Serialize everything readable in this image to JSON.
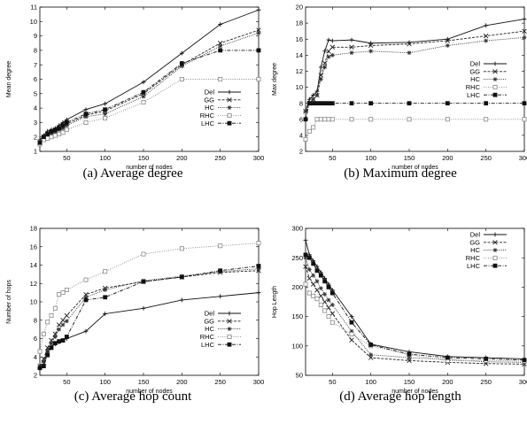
{
  "chart_data": [
    {
      "type": "line",
      "caption": "(a)  Average degree",
      "xlabel": "number of nodes",
      "ylabel": "Mean degree",
      "xlim": [
        15,
        300
      ],
      "ylim": [
        1,
        11
      ],
      "xticks": [
        50,
        100,
        150,
        200,
        250,
        300
      ],
      "yticks": [
        1,
        2,
        3,
        4,
        5,
        6,
        7,
        8,
        9,
        10,
        11
      ],
      "legend_position": "bottom-right",
      "x": [
        15,
        20,
        25,
        30,
        35,
        40,
        45,
        50,
        75,
        100,
        150,
        200,
        250,
        300
      ],
      "series": [
        {
          "name": "Del",
          "values": [
            1.8,
            2.1,
            2.4,
            2.5,
            2.6,
            2.8,
            3.0,
            3.2,
            3.9,
            4.3,
            5.8,
            7.8,
            9.8,
            10.8
          ]
        },
        {
          "name": "GG",
          "values": [
            1.6,
            2.0,
            2.2,
            2.3,
            2.4,
            2.6,
            2.7,
            2.9,
            3.5,
            3.8,
            5.0,
            7.0,
            8.5,
            9.4
          ]
        },
        {
          "name": "HC",
          "values": [
            1.6,
            1.9,
            2.1,
            2.2,
            2.3,
            2.5,
            2.6,
            2.8,
            3.4,
            3.6,
            4.8,
            6.9,
            8.3,
            9.2
          ]
        },
        {
          "name": "RHC",
          "values": [
            1.5,
            1.8,
            1.9,
            2.0,
            2.1,
            2.2,
            2.3,
            2.5,
            3.0,
            3.3,
            4.4,
            6.0,
            6.0,
            6.0
          ]
        },
        {
          "name": "LHC",
          "values": [
            1.6,
            2.0,
            2.2,
            2.4,
            2.5,
            2.6,
            2.8,
            3.0,
            3.6,
            3.9,
            5.1,
            7.1,
            8.0,
            8.0
          ]
        }
      ]
    },
    {
      "type": "line",
      "caption": "(b)  Maximum degree",
      "xlabel": "number of nodes",
      "ylabel": "Max degree",
      "xlim": [
        15,
        300
      ],
      "ylim": [
        2,
        20
      ],
      "xticks": [
        50,
        100,
        150,
        200,
        250,
        300
      ],
      "yticks": [
        2,
        4,
        6,
        8,
        10,
        12,
        14,
        16,
        18,
        20
      ],
      "legend_position": "middle-right",
      "x": [
        15,
        20,
        25,
        30,
        35,
        40,
        45,
        50,
        75,
        100,
        150,
        200,
        250,
        300
      ],
      "series": [
        {
          "name": "Del",
          "values": [
            7.0,
            8.5,
            9.0,
            9.5,
            12.5,
            14.5,
            15.9,
            15.8,
            15.9,
            15.5,
            15.6,
            16.0,
            17.7,
            18.5
          ]
        },
        {
          "name": "GG",
          "values": [
            7.0,
            8.0,
            8.5,
            9.0,
            11.5,
            13.0,
            14.5,
            15.0,
            15.0,
            15.2,
            15.4,
            15.8,
            16.4,
            17.0
          ]
        },
        {
          "name": "HC",
          "values": [
            7.0,
            8.0,
            8.5,
            9.0,
            11.0,
            12.5,
            13.8,
            14.0,
            14.3,
            14.5,
            14.3,
            15.2,
            15.8,
            16.2
          ]
        },
        {
          "name": "RHC",
          "values": [
            3.5,
            4.5,
            5.0,
            6.0,
            6.0,
            6.0,
            6.0,
            6.0,
            6.0,
            6.0,
            6.0,
            6.0,
            6.0,
            6.0
          ]
        },
        {
          "name": "LHC",
          "values": [
            6.0,
            8.0,
            8.0,
            8.0,
            8.0,
            8.0,
            8.0,
            8.0,
            8.0,
            8.0,
            8.0,
            8.0,
            8.0,
            8.0
          ]
        }
      ]
    },
    {
      "type": "line",
      "caption": "(c)  Average hop count",
      "xlabel": "number of nodes",
      "ylabel": "Number of hops",
      "xlim": [
        15,
        300
      ],
      "ylim": [
        2,
        18
      ],
      "xticks": [
        50,
        100,
        150,
        200,
        250,
        300
      ],
      "yticks": [
        2,
        4,
        6,
        8,
        10,
        12,
        14,
        16,
        18
      ],
      "legend_position": "bottom-right",
      "x": [
        15,
        20,
        25,
        30,
        35,
        40,
        45,
        50,
        75,
        100,
        150,
        200,
        250,
        300
      ],
      "series": [
        {
          "name": "Del",
          "values": [
            2.7,
            3.2,
            4.5,
            5.2,
            5.4,
            5.6,
            5.8,
            6.0,
            6.8,
            8.7,
            9.3,
            10.2,
            10.6,
            11.0
          ]
        },
        {
          "name": "GG",
          "values": [
            3.0,
            3.8,
            5.0,
            5.8,
            6.5,
            7.5,
            8.0,
            8.5,
            10.8,
            11.5,
            12.2,
            12.7,
            13.2,
            13.4
          ]
        },
        {
          "name": "HC",
          "values": [
            2.8,
            3.5,
            4.7,
            5.5,
            6.2,
            7.0,
            7.5,
            7.9,
            10.5,
            11.3,
            12.3,
            12.8,
            13.3,
            13.6
          ]
        },
        {
          "name": "RHC",
          "values": [
            4.6,
            6.5,
            7.8,
            8.5,
            9.3,
            10.8,
            11.0,
            11.3,
            12.4,
            13.3,
            15.2,
            15.8,
            16.1,
            16.4
          ]
        },
        {
          "name": "LHC",
          "values": [
            2.8,
            3.0,
            4.2,
            5.0,
            5.5,
            5.7,
            5.8,
            6.2,
            10.2,
            10.5,
            12.2,
            12.7,
            13.4,
            13.9
          ]
        }
      ]
    },
    {
      "type": "line",
      "caption": "(d)  Average hop length",
      "xlabel": "number of nodes",
      "ylabel": "Hop Length",
      "xlim": [
        15,
        300
      ],
      "ylim": [
        50,
        300
      ],
      "xticks": [
        50,
        100,
        150,
        200,
        250,
        300
      ],
      "yticks": [
        50,
        100,
        150,
        200,
        250,
        300
      ],
      "legend_position": "top-right",
      "x": [
        15,
        20,
        25,
        30,
        35,
        40,
        45,
        50,
        75,
        100,
        150,
        200,
        250,
        300
      ],
      "series": [
        {
          "name": "Del",
          "values": [
            280,
            255,
            245,
            235,
            225,
            215,
            205,
            195,
            150,
            103,
            90,
            82,
            80,
            78
          ]
        },
        {
          "name": "GG",
          "values": [
            235,
            215,
            205,
            195,
            185,
            175,
            165,
            155,
            110,
            80,
            75,
            72,
            70,
            69
          ]
        },
        {
          "name": "HC",
          "values": [
            250,
            230,
            220,
            210,
            198,
            188,
            178,
            170,
            125,
            85,
            80,
            77,
            73,
            72
          ]
        },
        {
          "name": "RHC",
          "values": [
            205,
            190,
            185,
            180,
            170,
            160,
            150,
            140,
            120,
            100,
            85,
            75,
            75,
            74
          ]
        },
        {
          "name": "LHC",
          "values": [
            255,
            250,
            240,
            228,
            220,
            210,
            200,
            190,
            140,
            102,
            86,
            80,
            78,
            76
          ]
        }
      ]
    }
  ],
  "styles": {
    "Del": {
      "dash": "",
      "marker": "plus"
    },
    "GG": {
      "dash": "3,1.5",
      "marker": "cross"
    },
    "HC": {
      "dash": "1,1.2",
      "marker": "star"
    },
    "RHC": {
      "dash": "1,1.5",
      "marker": "square-open"
    },
    "LHC": {
      "dash": "4,1.5,1,1.5",
      "marker": "square-filled"
    }
  },
  "colors": {
    "Del": "#111111",
    "GG": "#222222",
    "HC": "#333333",
    "RHC": "#888888",
    "LHC": "#111111"
  }
}
